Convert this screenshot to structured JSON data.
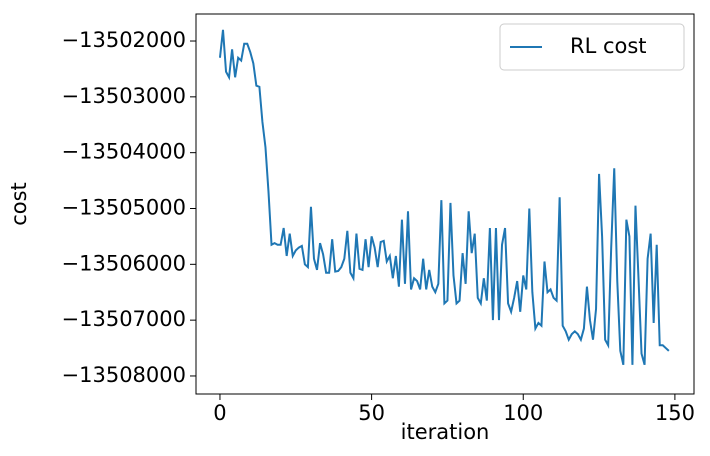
{
  "chart_data": {
    "type": "line",
    "x_label": "iteration",
    "y_label": "cost",
    "x": [
      0,
      1,
      2,
      3,
      4,
      5,
      6,
      7,
      8,
      9,
      10,
      11,
      12,
      13,
      14,
      15,
      16,
      17,
      18,
      19,
      20,
      21,
      22,
      23,
      24,
      25,
      26,
      27,
      28,
      29,
      30,
      31,
      32,
      33,
      34,
      35,
      36,
      37,
      38,
      39,
      40,
      41,
      42,
      43,
      44,
      45,
      46,
      47,
      48,
      49,
      50,
      51,
      52,
      53,
      54,
      55,
      56,
      57,
      58,
      59,
      60,
      61,
      62,
      63,
      64,
      65,
      66,
      67,
      68,
      69,
      70,
      71,
      72,
      73,
      74,
      75,
      76,
      77,
      78,
      79,
      80,
      81,
      82,
      83,
      84,
      85,
      86,
      87,
      88,
      89,
      90,
      91,
      92,
      93,
      94,
      95,
      96,
      97,
      98,
      99,
      100,
      101,
      102,
      103,
      104,
      105,
      106,
      107,
      108,
      109,
      110,
      111,
      112,
      113,
      114,
      115,
      116,
      117,
      118,
      119,
      120,
      121,
      122,
      123,
      124,
      125,
      126,
      127,
      128,
      129,
      130,
      131,
      132,
      133,
      134,
      135,
      136,
      137,
      138,
      139,
      140,
      141,
      142,
      143,
      144,
      145,
      146,
      147,
      148
    ],
    "series": [
      {
        "name": "RL cost",
        "color": "#1f77b4",
        "values": [
          -13502300,
          -13501800,
          -13502550,
          -13502650,
          -13502150,
          -13502650,
          -13502300,
          -13502350,
          -13502050,
          -13502050,
          -13502200,
          -13502400,
          -13502800,
          -13502820,
          -13503450,
          -13503900,
          -13504700,
          -13505650,
          -13505620,
          -13505650,
          -13505650,
          -13505350,
          -13505850,
          -13505450,
          -13505850,
          -13505750,
          -13505700,
          -13505670,
          -13506000,
          -13506050,
          -13504970,
          -13505900,
          -13506100,
          -13505620,
          -13505820,
          -13506150,
          -13506150,
          -13505550,
          -13506130,
          -13506120,
          -13506050,
          -13505900,
          -13505400,
          -13506150,
          -13506250,
          -13505450,
          -13506080,
          -13506100,
          -13505550,
          -13506050,
          -13505500,
          -13505700,
          -13506050,
          -13505600,
          -13505580,
          -13505950,
          -13505850,
          -13506250,
          -13505850,
          -13506400,
          -13505200,
          -13506350,
          -13505050,
          -13506450,
          -13506250,
          -13506300,
          -13506450,
          -13505900,
          -13506450,
          -13506100,
          -13506400,
          -13506500,
          -13506350,
          -13504850,
          -13506700,
          -13506650,
          -13504900,
          -13506200,
          -13506700,
          -13506650,
          -13505800,
          -13506350,
          -13505050,
          -13505800,
          -13505450,
          -13506600,
          -13506700,
          -13506250,
          -13506650,
          -13505350,
          -13507000,
          -13505350,
          -13507000,
          -13505650,
          -13505350,
          -13506700,
          -13506850,
          -13506600,
          -13506300,
          -13506850,
          -13506200,
          -13506450,
          -13505000,
          -13506500,
          -13507150,
          -13507050,
          -13507100,
          -13505950,
          -13506500,
          -13506450,
          -13506600,
          -13506650,
          -13504800,
          -13507100,
          -13507200,
          -13507350,
          -13507250,
          -13507200,
          -13507250,
          -13507350,
          -13507150,
          -13506400,
          -13507000,
          -13507350,
          -13506800,
          -13504380,
          -13505500,
          -13507350,
          -13507450,
          -13505700,
          -13504280,
          -13506300,
          -13507550,
          -13507800,
          -13505200,
          -13505500,
          -13507800,
          -13504950,
          -13506250,
          -13507600,
          -13507800,
          -13505900,
          -13505450,
          -13507050,
          -13505650,
          -13507450,
          -13507450,
          -13507500,
          -13507550
        ]
      }
    ],
    "xlim": [
      -7.9,
      156.3
    ],
    "xticks": [
      0,
      50,
      100,
      150
    ],
    "ylim": [
      -13508323,
      -13501516
    ],
    "yticks": [
      {
        "value": -13502000,
        "label": "−13502000"
      },
      {
        "value": -13503000,
        "label": "−13503000"
      },
      {
        "value": -13504000,
        "label": "−13504000"
      },
      {
        "value": -13505000,
        "label": "−13505000"
      },
      {
        "value": -13506000,
        "label": "−13506000"
      },
      {
        "value": -13507000,
        "label": "−13507000"
      },
      {
        "value": -13508000,
        "label": "−13508000"
      }
    ],
    "grid": false,
    "legend_position": "upper-right"
  }
}
